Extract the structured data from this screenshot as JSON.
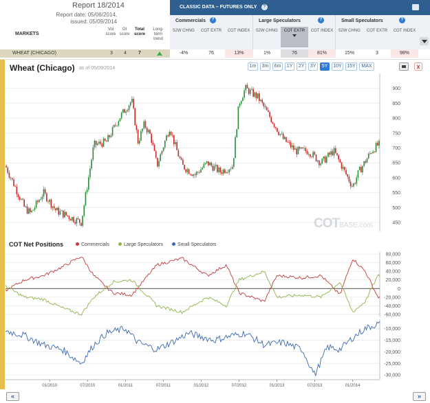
{
  "report": {
    "title": "Report 18/2014",
    "report_date": "Report date: 05/06/2014,",
    "issued": "issued: 05/09/2014",
    "markets_label": "MARKETS",
    "columns": [
      "Vol score",
      "OI score",
      "Total score",
      "Long-term trend"
    ]
  },
  "classic": {
    "title": "CLASSIC DATA – FUTURES ONLY",
    "groups": [
      {
        "name": "Commercials",
        "cols": [
          "52W CHNG",
          "COT EXTR",
          "COT INDEX"
        ]
      },
      {
        "name": "Large Speculators",
        "cols": [
          "52W CHNG",
          "COT EXTR",
          "COT INDEX"
        ]
      },
      {
        "name": "Small Speculators",
        "cols": [
          "52W CHNG",
          "COT EXTR",
          "COT INDEX"
        ]
      }
    ]
  },
  "row": {
    "name": "WHEAT (CHICAGO)",
    "vol": "3",
    "oi": "4",
    "total": "7",
    "values": [
      "-4%",
      "76",
      "13%",
      "1%",
      "76",
      "81%",
      "15%",
      "3",
      "98%"
    ]
  },
  "chart": {
    "title": "Wheat (Chicago)",
    "asof": "as of 05/09/2014",
    "ranges": [
      "1m",
      "3m",
      "6m",
      "1Y",
      "2Y",
      "3Y",
      "5Y",
      "10Y",
      "15Y",
      "MAX"
    ],
    "active_range": "5Y",
    "watermark": "COT",
    "watermark_small": "BASE.com"
  },
  "cot": {
    "title": "COT Net Positions",
    "legend": [
      "Commercials",
      "Large Speculators",
      "Small Speculators"
    ]
  },
  "colors": {
    "commercials": "#c0393b",
    "large": "#8fb348",
    "small": "#3a68ad",
    "up_candle": "#2a8a3a",
    "down_candle": "#c62828",
    "accent": "#2f5f91"
  },
  "chart_data": [
    {
      "type": "candlestick",
      "title": "Wheat (Chicago)",
      "y_ticks": [
        450,
        500,
        550,
        600,
        650,
        700,
        750,
        800,
        850,
        900
      ],
      "ylim": [
        420,
        950
      ],
      "close_anchors": [
        [
          "2009-06",
          640
        ],
        [
          "2009-09",
          500
        ],
        [
          "2009-10",
          480
        ],
        [
          "2009-12",
          550
        ],
        [
          "2010-02",
          490
        ],
        [
          "2010-05",
          460
        ],
        [
          "2010-06",
          450
        ],
        [
          "2010-08",
          710
        ],
        [
          "2010-10",
          720
        ],
        [
          "2010-12",
          800
        ],
        [
          "2011-02",
          860
        ],
        [
          "2011-03",
          720
        ],
        [
          "2011-04",
          780
        ],
        [
          "2011-05",
          740
        ],
        [
          "2011-06",
          640
        ],
        [
          "2011-08",
          770
        ],
        [
          "2011-09",
          700
        ],
        [
          "2011-10",
          640
        ],
        [
          "2011-12",
          610
        ],
        [
          "2012-02",
          650
        ],
        [
          "2012-04",
          620
        ],
        [
          "2012-06",
          640
        ],
        [
          "2012-07",
          850
        ],
        [
          "2012-08",
          900
        ],
        [
          "2012-10",
          870
        ],
        [
          "2012-12",
          800
        ],
        [
          "2013-02",
          730
        ],
        [
          "2013-04",
          690
        ],
        [
          "2013-06",
          690
        ],
        [
          "2013-08",
          650
        ],
        [
          "2013-10",
          690
        ],
        [
          "2013-12",
          610
        ],
        [
          "2014-01",
          570
        ],
        [
          "2014-02",
          620
        ],
        [
          "2014-04",
          690
        ],
        [
          "2014-05",
          710
        ]
      ]
    },
    {
      "type": "line",
      "title": "COT Net Positions",
      "y_ticks": [
        80000,
        60000,
        40000,
        20000,
        0,
        -20000,
        -40000,
        -60000
      ],
      "ylim": [
        -65000,
        85000
      ],
      "series": [
        {
          "name": "Commercials",
          "anchors": [
            [
              "2009-06",
              -5000
            ],
            [
              "2009-09",
              20000
            ],
            [
              "2009-12",
              30000
            ],
            [
              "2010-03",
              50000
            ],
            [
              "2010-06",
              75000
            ],
            [
              "2010-08",
              30000
            ],
            [
              "2010-11",
              -10000
            ],
            [
              "2011-02",
              -15000
            ],
            [
              "2011-06",
              55000
            ],
            [
              "2011-10",
              70000
            ],
            [
              "2012-02",
              30000
            ],
            [
              "2012-05",
              55000
            ],
            [
              "2012-07",
              -10000
            ],
            [
              "2012-11",
              -30000
            ],
            [
              "2013-01",
              30000
            ],
            [
              "2013-05",
              25000
            ],
            [
              "2013-08",
              30000
            ],
            [
              "2013-11",
              -15000
            ],
            [
              "2014-01",
              70000
            ],
            [
              "2014-03",
              40000
            ],
            [
              "2014-05",
              -20000
            ]
          ]
        },
        {
          "name": "Large Speculators",
          "anchors": [
            [
              "2009-06",
              5000
            ],
            [
              "2009-09",
              -20000
            ],
            [
              "2009-12",
              -25000
            ],
            [
              "2010-03",
              -45000
            ],
            [
              "2010-06",
              -60000
            ],
            [
              "2010-08",
              -20000
            ],
            [
              "2010-11",
              15000
            ],
            [
              "2011-02",
              20000
            ],
            [
              "2011-06",
              -40000
            ],
            [
              "2011-10",
              -55000
            ],
            [
              "2012-02",
              -20000
            ],
            [
              "2012-05",
              -40000
            ],
            [
              "2012-07",
              20000
            ],
            [
              "2012-11",
              40000
            ],
            [
              "2013-01",
              -20000
            ],
            [
              "2013-05",
              -15000
            ],
            [
              "2013-08",
              -20000
            ],
            [
              "2013-11",
              15000
            ],
            [
              "2014-01",
              -55000
            ],
            [
              "2014-03",
              -30000
            ],
            [
              "2014-05",
              30000
            ]
          ]
        }
      ]
    },
    {
      "type": "line",
      "title": "Small Speculators",
      "y_ticks": [
        -10000,
        -15000,
        -20000,
        -25000,
        -30000
      ],
      "ylim": [
        -32000,
        -6000
      ],
      "series": [
        {
          "name": "Small Speculators",
          "anchors": [
            [
              "2009-06",
              -11000
            ],
            [
              "2009-09",
              -13000
            ],
            [
              "2009-12",
              -17000
            ],
            [
              "2010-03",
              -19000
            ],
            [
              "2010-06",
              -25000
            ],
            [
              "2010-08",
              -17000
            ],
            [
              "2010-10",
              -12000
            ],
            [
              "2011-01",
              -10000
            ],
            [
              "2011-03",
              -16000
            ],
            [
              "2011-06",
              -19000
            ],
            [
              "2011-09",
              -15000
            ],
            [
              "2011-11",
              -12000
            ],
            [
              "2012-03",
              -15000
            ],
            [
              "2012-06",
              -13000
            ],
            [
              "2012-08",
              -12000
            ],
            [
              "2012-11",
              -17000
            ],
            [
              "2013-02",
              -16000
            ],
            [
              "2013-05",
              -19000
            ],
            [
              "2013-07",
              -30000
            ],
            [
              "2013-09",
              -18000
            ],
            [
              "2013-11",
              -19000
            ],
            [
              "2014-01",
              -14000
            ],
            [
              "2014-03",
              -10000
            ],
            [
              "2014-05",
              -8000
            ]
          ]
        }
      ]
    }
  ],
  "x_ticks": [
    "01/2010",
    "07/2010",
    "01/2011",
    "07/2011",
    "01/2012",
    "07/2012",
    "01/2013",
    "07/2013",
    "01/2014"
  ]
}
